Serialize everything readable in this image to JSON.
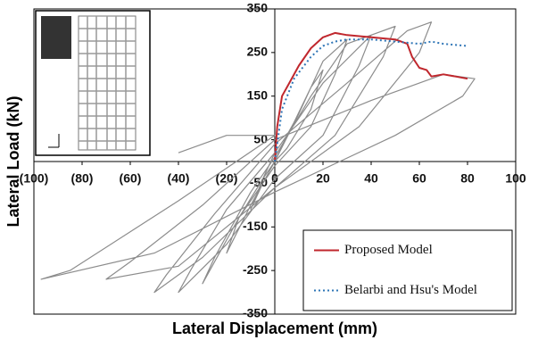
{
  "chart_data": {
    "type": "line",
    "x_label": "Lateral Displacement (mm)",
    "y_label": "Lateral Load (kN)",
    "xlim": [
      -100,
      100
    ],
    "ylim": [
      -350,
      350
    ],
    "xticks": [
      {
        "value": -100,
        "label": "(100)"
      },
      {
        "value": -80,
        "label": "(80)"
      },
      {
        "value": -60,
        "label": "(60)"
      },
      {
        "value": -40,
        "label": "(40)"
      },
      {
        "value": -20,
        "label": "(20)"
      },
      0,
      20,
      40,
      60,
      80,
      100
    ],
    "yticks": [
      -350,
      -250,
      -150,
      -50,
      50,
      150,
      250,
      350
    ],
    "legend": "lower right",
    "series": [
      {
        "color": "#8c8c8c",
        "x": [
          0,
          5,
          10,
          5,
          0,
          -5,
          -10,
          -5,
          0,
          8,
          15,
          20,
          15,
          5,
          0,
          -10,
          -20,
          -15,
          -5,
          0,
          10,
          20,
          30,
          25,
          15,
          0,
          -15,
          -30,
          -25,
          -10,
          0,
          15,
          30,
          40,
          35,
          20,
          0,
          -20,
          -40,
          -35,
          -20,
          0,
          20,
          40,
          50,
          45,
          25,
          0,
          -30,
          -50,
          -45,
          -25,
          0,
          30,
          55,
          65,
          60,
          35,
          0,
          -40,
          -70,
          -60,
          -30,
          0,
          40,
          70,
          83,
          78,
          50,
          0,
          -50,
          -97,
          -85,
          -40,
          0,
          -20,
          -40
        ],
        "values": [
          0,
          60,
          110,
          60,
          20,
          -40,
          -110,
          -50,
          0,
          90,
          170,
          210,
          120,
          30,
          0,
          -100,
          -210,
          -130,
          -40,
          0,
          110,
          230,
          280,
          200,
          80,
          -10,
          -130,
          -280,
          -220,
          -70,
          10,
          150,
          270,
          290,
          220,
          60,
          -40,
          -190,
          -300,
          -250,
          -110,
          20,
          180,
          290,
          310,
          240,
          60,
          -60,
          -220,
          -300,
          -260,
          -120,
          40,
          180,
          300,
          320,
          250,
          80,
          -60,
          -240,
          -270,
          -230,
          -100,
          50,
          140,
          200,
          190,
          150,
          60,
          -70,
          -210,
          -270,
          -250,
          -90,
          60,
          60,
          20
        ]
      },
      {
        "name": "Proposed Model",
        "color": "#c0272d",
        "dash": "solid",
        "x": [
          0,
          1,
          3,
          6,
          10,
          15,
          20,
          25,
          30,
          40,
          50,
          55,
          57,
          60,
          63,
          65,
          70,
          75,
          80
        ],
        "values": [
          0,
          80,
          150,
          180,
          220,
          260,
          285,
          295,
          290,
          285,
          280,
          270,
          240,
          215,
          210,
          195,
          200,
          195,
          190
        ]
      },
      {
        "name": "Belarbi and Hsu's Model",
        "color": "#2e75b6",
        "dash": "dotted",
        "x": [
          0,
          3,
          8,
          15,
          20,
          25,
          30,
          40,
          50,
          60,
          65,
          70,
          80
        ],
        "values": [
          0,
          120,
          190,
          240,
          265,
          275,
          280,
          280,
          275,
          270,
          275,
          270,
          265
        ]
      }
    ]
  }
}
